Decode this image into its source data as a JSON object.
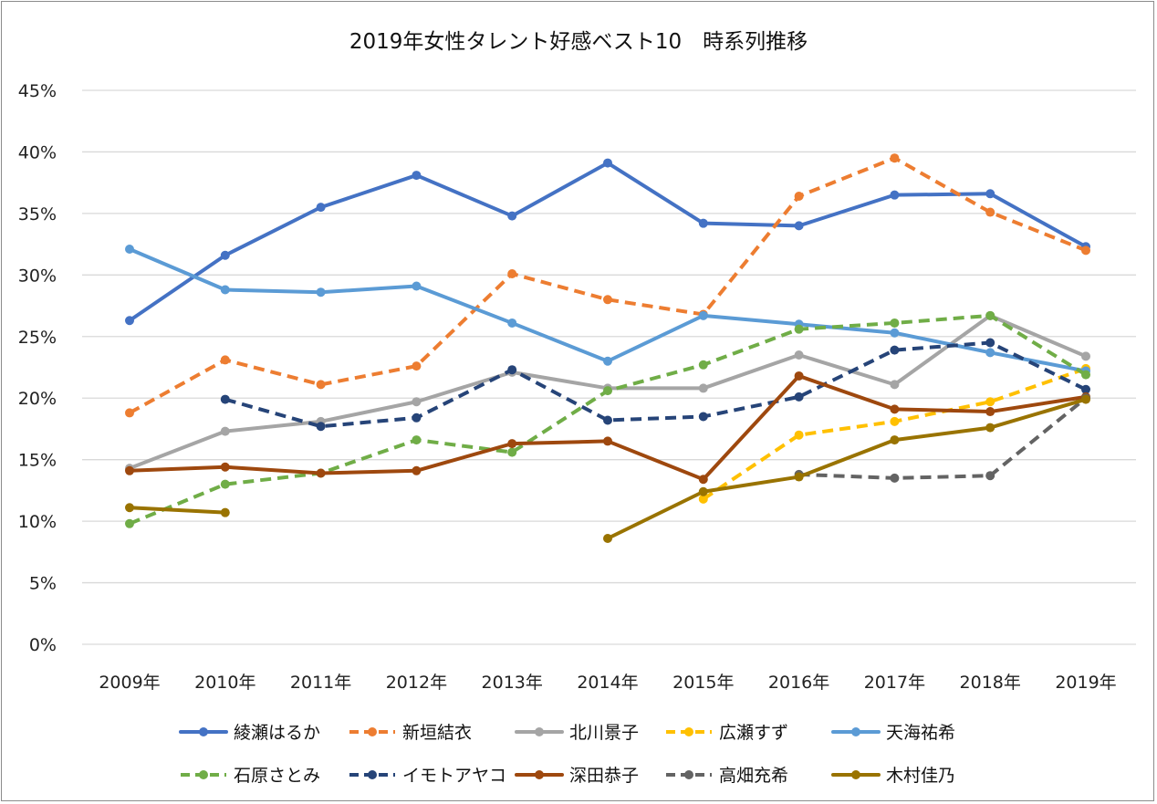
{
  "chart_data": {
    "type": "line",
    "title": "2019年女性タレント好感ベスト10　時系列推移",
    "xlabel": "",
    "ylabel": "",
    "categories": [
      "2009年",
      "2010年",
      "2011年",
      "2012年",
      "2013年",
      "2014年",
      "2015年",
      "2016年",
      "2017年",
      "2018年",
      "2019年"
    ],
    "ylim": [
      0,
      0.45
    ],
    "yticks": [
      "0%",
      "5%",
      "10%",
      "15%",
      "20%",
      "25%",
      "30%",
      "35%",
      "40%",
      "45%"
    ],
    "grid": true,
    "legend_position": "bottom",
    "series": [
      {
        "name": "綾瀬はるか",
        "color": "#4472c4",
        "dash": false,
        "values": [
          0.263,
          0.316,
          0.355,
          0.381,
          0.348,
          0.391,
          0.342,
          0.34,
          0.365,
          0.366,
          0.323
        ]
      },
      {
        "name": "新垣結衣",
        "color": "#ed7d31",
        "dash": true,
        "values": [
          0.188,
          0.231,
          0.211,
          0.226,
          0.301,
          0.28,
          0.268,
          0.364,
          0.395,
          0.351,
          0.32
        ]
      },
      {
        "name": "北川景子",
        "color": "#a5a5a5",
        "dash": false,
        "values": [
          0.143,
          0.173,
          0.181,
          0.197,
          0.221,
          0.208,
          0.208,
          0.235,
          0.211,
          0.267,
          0.234
        ]
      },
      {
        "name": "広瀬すず",
        "color": "#ffc000",
        "dash": true,
        "values": [
          null,
          null,
          null,
          null,
          null,
          null,
          0.118,
          0.17,
          0.181,
          0.197,
          0.224
        ]
      },
      {
        "name": "天海祐希",
        "color": "#5b9bd5",
        "dash": false,
        "values": [
          0.321,
          0.288,
          0.286,
          0.291,
          0.261,
          0.23,
          0.267,
          0.26,
          0.253,
          0.237,
          0.222
        ]
      },
      {
        "name": "石原さとみ",
        "color": "#70ad47",
        "dash": true,
        "values": [
          0.098,
          0.13,
          0.139,
          0.166,
          0.156,
          0.206,
          0.227,
          0.256,
          0.261,
          0.267,
          0.219
        ]
      },
      {
        "name": "イモトアヤコ",
        "color": "#264478",
        "dash": true,
        "values": [
          null,
          0.199,
          0.177,
          0.184,
          0.223,
          0.182,
          0.185,
          0.201,
          0.239,
          0.245,
          0.207
        ]
      },
      {
        "name": "深田恭子",
        "color": "#9e480e",
        "dash": false,
        "values": [
          0.141,
          0.144,
          0.139,
          0.141,
          0.163,
          0.165,
          0.134,
          0.218,
          0.191,
          0.189,
          0.201
        ]
      },
      {
        "name": "高畑充希",
        "color": "#636363",
        "dash": true,
        "values": [
          null,
          null,
          null,
          null,
          null,
          null,
          null,
          0.138,
          0.135,
          0.137,
          0.2
        ]
      },
      {
        "name": "木村佳乃",
        "color": "#997300",
        "dash": false,
        "values": [
          0.111,
          0.107,
          null,
          null,
          null,
          0.086,
          0.124,
          0.136,
          0.166,
          0.176,
          0.199
        ]
      }
    ]
  }
}
